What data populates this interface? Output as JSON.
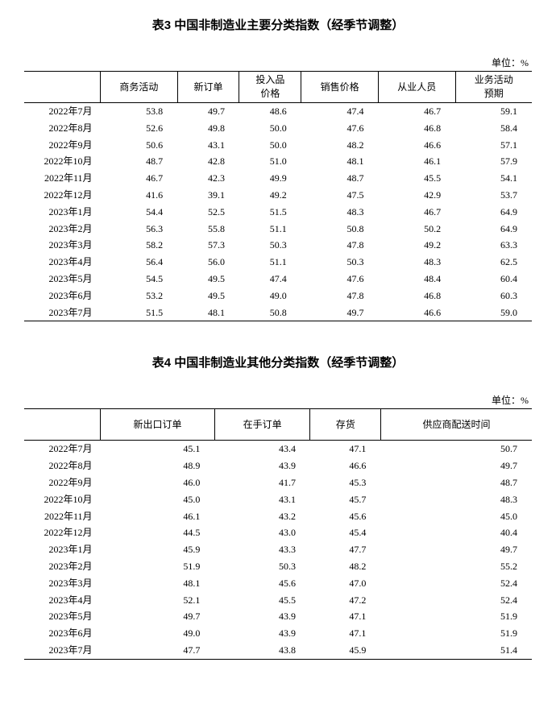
{
  "unit_text": "单位：%",
  "table3": {
    "title": "表3 中国非制造业主要分类指数（经季节调整）",
    "row_label_header": "",
    "columns": [
      "商务活动",
      "新订单",
      "投入品\n价格",
      "销售价格",
      "从业人员",
      "业务活动\n预期"
    ],
    "rows": [
      {
        "label": "2022年7月",
        "values": [
          "53.8",
          "49.7",
          "48.6",
          "47.4",
          "46.7",
          "59.1"
        ]
      },
      {
        "label": "2022年8月",
        "values": [
          "52.6",
          "49.8",
          "50.0",
          "47.6",
          "46.8",
          "58.4"
        ]
      },
      {
        "label": "2022年9月",
        "values": [
          "50.6",
          "43.1",
          "50.0",
          "48.2",
          "46.6",
          "57.1"
        ]
      },
      {
        "label": "2022年10月",
        "values": [
          "48.7",
          "42.8",
          "51.0",
          "48.1",
          "46.1",
          "57.9"
        ]
      },
      {
        "label": "2022年11月",
        "values": [
          "46.7",
          "42.3",
          "49.9",
          "48.7",
          "45.5",
          "54.1"
        ]
      },
      {
        "label": "2022年12月",
        "values": [
          "41.6",
          "39.1",
          "49.2",
          "47.5",
          "42.9",
          "53.7"
        ]
      },
      {
        "label": "2023年1月",
        "values": [
          "54.4",
          "52.5",
          "51.5",
          "48.3",
          "46.7",
          "64.9"
        ]
      },
      {
        "label": "2023年2月",
        "values": [
          "56.3",
          "55.8",
          "51.1",
          "50.8",
          "50.2",
          "64.9"
        ]
      },
      {
        "label": "2023年3月",
        "values": [
          "58.2",
          "57.3",
          "50.3",
          "47.8",
          "49.2",
          "63.3"
        ]
      },
      {
        "label": "2023年4月",
        "values": [
          "56.4",
          "56.0",
          "51.1",
          "50.3",
          "48.3",
          "62.5"
        ]
      },
      {
        "label": "2023年5月",
        "values": [
          "54.5",
          "49.5",
          "47.4",
          "47.6",
          "48.4",
          "60.4"
        ]
      },
      {
        "label": "2023年6月",
        "values": [
          "53.2",
          "49.5",
          "49.0",
          "47.8",
          "46.8",
          "60.3"
        ]
      },
      {
        "label": "2023年7月",
        "values": [
          "51.5",
          "48.1",
          "50.8",
          "49.7",
          "46.6",
          "59.0"
        ]
      }
    ]
  },
  "table4": {
    "title": "表4 中国非制造业其他分类指数（经季节调整）",
    "row_label_header": "",
    "columns": [
      "新出口订单",
      "在手订单",
      "存货",
      "供应商配送时间"
    ],
    "rows": [
      {
        "label": "2022年7月",
        "values": [
          "45.1",
          "43.4",
          "47.1",
          "50.7"
        ]
      },
      {
        "label": "2022年8月",
        "values": [
          "48.9",
          "43.9",
          "46.6",
          "49.7"
        ]
      },
      {
        "label": "2022年9月",
        "values": [
          "46.0",
          "41.7",
          "45.3",
          "48.7"
        ]
      },
      {
        "label": "2022年10月",
        "values": [
          "45.0",
          "43.1",
          "45.7",
          "48.3"
        ]
      },
      {
        "label": "2022年11月",
        "values": [
          "46.1",
          "43.2",
          "45.6",
          "45.0"
        ]
      },
      {
        "label": "2022年12月",
        "values": [
          "44.5",
          "43.0",
          "45.4",
          "40.4"
        ]
      },
      {
        "label": "2023年1月",
        "values": [
          "45.9",
          "43.3",
          "47.7",
          "49.7"
        ]
      },
      {
        "label": "2023年2月",
        "values": [
          "51.9",
          "50.3",
          "48.2",
          "55.2"
        ]
      },
      {
        "label": "2023年3月",
        "values": [
          "48.1",
          "45.6",
          "47.0",
          "52.4"
        ]
      },
      {
        "label": "2023年4月",
        "values": [
          "52.1",
          "45.5",
          "47.2",
          "52.4"
        ]
      },
      {
        "label": "2023年5月",
        "values": [
          "49.7",
          "43.9",
          "47.1",
          "51.9"
        ]
      },
      {
        "label": "2023年6月",
        "values": [
          "49.0",
          "43.9",
          "47.1",
          "51.9"
        ]
      },
      {
        "label": "2023年7月",
        "values": [
          "47.7",
          "43.8",
          "45.9",
          "51.4"
        ]
      }
    ]
  }
}
